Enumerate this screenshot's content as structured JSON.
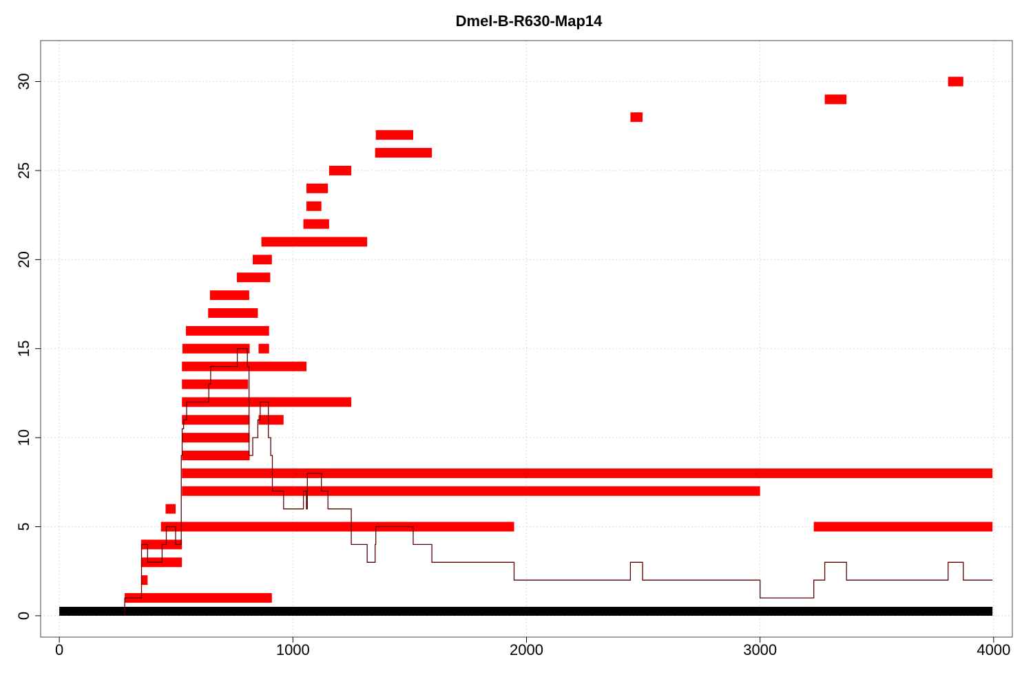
{
  "chart_data": {
    "type": "bar",
    "title": "Dmel-B-R630-Map14",
    "xlabel": "",
    "ylabel": "",
    "xlim": [
      -80,
      4080
    ],
    "ylim": [
      -1.2,
      32.3
    ],
    "x_ticks": [
      0,
      1000,
      2000,
      3000,
      4000
    ],
    "y_ticks": [
      0,
      5,
      10,
      15,
      20,
      25,
      30
    ],
    "grid": true,
    "colors": {
      "segments": "#ff0000",
      "reference": "#000000",
      "coverage": "#5a0000"
    },
    "reference_bar": {
      "x0": 0,
      "x1": 3995,
      "y": 0
    },
    "segments": [
      {
        "x0": 280,
        "x1": 910,
        "y": 1
      },
      {
        "x0": 350,
        "x1": 378,
        "y": 2
      },
      {
        "x0": 350,
        "x1": 525,
        "y": 3
      },
      {
        "x0": 350,
        "x1": 525,
        "y": 4
      },
      {
        "x0": 435,
        "x1": 1947,
        "y": 5
      },
      {
        "x0": 3230,
        "x1": 3995,
        "y": 5
      },
      {
        "x0": 455,
        "x1": 498,
        "y": 6
      },
      {
        "x0": 525,
        "x1": 3000,
        "y": 7
      },
      {
        "x0": 525,
        "x1": 3995,
        "y": 8
      },
      {
        "x0": 525,
        "x1": 815,
        "y": 9
      },
      {
        "x0": 525,
        "x1": 815,
        "y": 10
      },
      {
        "x0": 525,
        "x1": 815,
        "y": 11
      },
      {
        "x0": 853,
        "x1": 960,
        "y": 11
      },
      {
        "x0": 525,
        "x1": 1250,
        "y": 12
      },
      {
        "x0": 525,
        "x1": 808,
        "y": 13
      },
      {
        "x0": 525,
        "x1": 1058,
        "y": 14
      },
      {
        "x0": 527,
        "x1": 815,
        "y": 15
      },
      {
        "x0": 853,
        "x1": 898,
        "y": 15
      },
      {
        "x0": 542,
        "x1": 898,
        "y": 16
      },
      {
        "x0": 637,
        "x1": 850,
        "y": 17
      },
      {
        "x0": 645,
        "x1": 813,
        "y": 18
      },
      {
        "x0": 760,
        "x1": 903,
        "y": 19
      },
      {
        "x0": 828,
        "x1": 910,
        "y": 20
      },
      {
        "x0": 865,
        "x1": 1318,
        "y": 21
      },
      {
        "x0": 1045,
        "x1": 1155,
        "y": 22
      },
      {
        "x0": 1058,
        "x1": 1122,
        "y": 23
      },
      {
        "x0": 1058,
        "x1": 1150,
        "y": 24
      },
      {
        "x0": 1155,
        "x1": 1250,
        "y": 25
      },
      {
        "x0": 1352,
        "x1": 1595,
        "y": 26
      },
      {
        "x0": 1355,
        "x1": 1515,
        "y": 27
      },
      {
        "x0": 2445,
        "x1": 2497,
        "y": 28
      },
      {
        "x0": 3277,
        "x1": 3370,
        "y": 29
      },
      {
        "x0": 3805,
        "x1": 3870,
        "y": 30
      }
    ],
    "coverage": [
      [
        280,
        0
      ],
      [
        280,
        1
      ],
      [
        352,
        1
      ],
      [
        352,
        4
      ],
      [
        378,
        4
      ],
      [
        378,
        3
      ],
      [
        440,
        3
      ],
      [
        440,
        4
      ],
      [
        458,
        4
      ],
      [
        458,
        5
      ],
      [
        498,
        5
      ],
      [
        498,
        4
      ],
      [
        522,
        4
      ],
      [
        522,
        9
      ],
      [
        526,
        9
      ],
      [
        526,
        10.5
      ],
      [
        532,
        10.5
      ],
      [
        532,
        11
      ],
      [
        545,
        11
      ],
      [
        545,
        12
      ],
      [
        640,
        12
      ],
      [
        640,
        13
      ],
      [
        648,
        13
      ],
      [
        648,
        14
      ],
      [
        762,
        14
      ],
      [
        762,
        15
      ],
      [
        805,
        15
      ],
      [
        805,
        14
      ],
      [
        812,
        14
      ],
      [
        812,
        9
      ],
      [
        828,
        9
      ],
      [
        828,
        10
      ],
      [
        850,
        10
      ],
      [
        850,
        11
      ],
      [
        860,
        11
      ],
      [
        860,
        12
      ],
      [
        895,
        12
      ],
      [
        895,
        10
      ],
      [
        905,
        10
      ],
      [
        905,
        9
      ],
      [
        912,
        9
      ],
      [
        912,
        7
      ],
      [
        960,
        7
      ],
      [
        960,
        6
      ],
      [
        1045,
        6
      ],
      [
        1045,
        7
      ],
      [
        1058,
        7
      ],
      [
        1058,
        6
      ],
      [
        1062,
        6
      ],
      [
        1062,
        8
      ],
      [
        1122,
        8
      ],
      [
        1122,
        7
      ],
      [
        1150,
        7
      ],
      [
        1150,
        6
      ],
      [
        1250,
        6
      ],
      [
        1250,
        4
      ],
      [
        1318,
        4
      ],
      [
        1318,
        3
      ],
      [
        1352,
        3
      ],
      [
        1352,
        4
      ],
      [
        1355,
        4
      ],
      [
        1355,
        5
      ],
      [
        1515,
        5
      ],
      [
        1515,
        4
      ],
      [
        1595,
        4
      ],
      [
        1595,
        3
      ],
      [
        1947,
        3
      ],
      [
        1947,
        2
      ],
      [
        2445,
        2
      ],
      [
        2445,
        3
      ],
      [
        2497,
        3
      ],
      [
        2497,
        2
      ],
      [
        3000,
        2
      ],
      [
        3000,
        1
      ],
      [
        3230,
        1
      ],
      [
        3230,
        2
      ],
      [
        3277,
        2
      ],
      [
        3277,
        3
      ],
      [
        3370,
        3
      ],
      [
        3370,
        2
      ],
      [
        3805,
        2
      ],
      [
        3805,
        3
      ],
      [
        3870,
        3
      ],
      [
        3870,
        2
      ],
      [
        3995,
        2
      ]
    ]
  }
}
